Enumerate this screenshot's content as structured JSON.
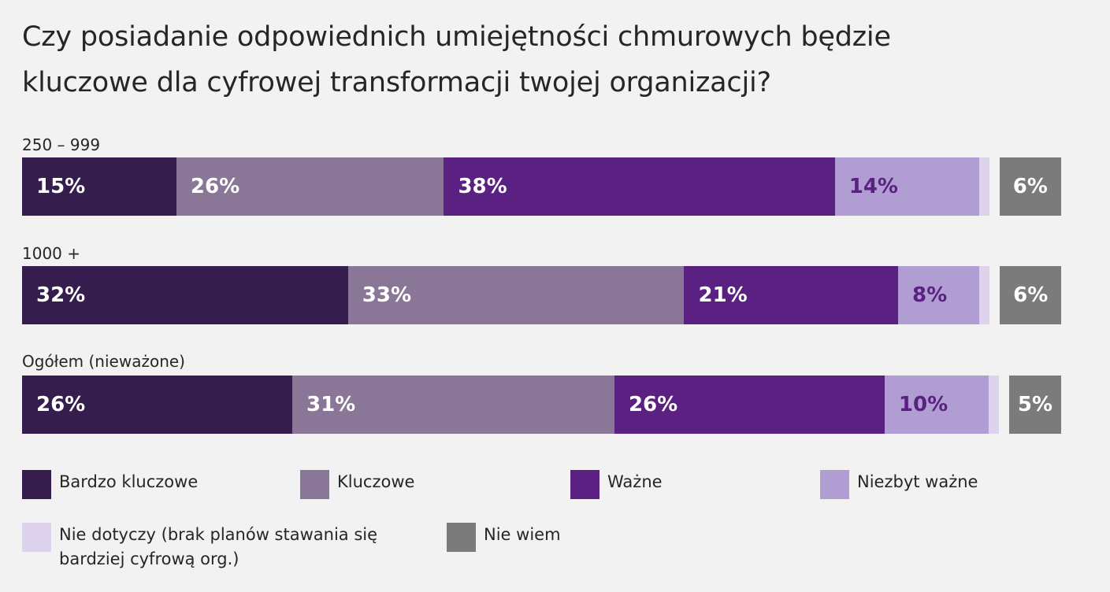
{
  "chart_data": {
    "type": "bar",
    "orientation": "horizontal",
    "stacked": true,
    "title": "Czy posiadanie odpowiednich umiejętności chmurowych będzie kluczowe dla cyfrowej transformacji twojej organizacji?",
    "categories": [
      "250 – 999",
      "1000 +",
      "Ogółem (nieważone)"
    ],
    "series": [
      {
        "name": "Bardzo kluczowe",
        "values": [
          15,
          32,
          26
        ],
        "labels": [
          "15%",
          "32%",
          "26%"
        ],
        "color": "#351d4d",
        "label_color": "#ffffff"
      },
      {
        "name": "Kluczowe",
        "values": [
          26,
          33,
          31
        ],
        "labels": [
          "26%",
          "33%",
          "31%"
        ],
        "color": "#8a7797",
        "label_color": "#ffffff"
      },
      {
        "name": "Ważne",
        "values": [
          38,
          21,
          26
        ],
        "labels": [
          "38%",
          "21%",
          "26%"
        ],
        "color": "#5a2182",
        "label_color": "#ffffff"
      },
      {
        "name": "Niezbyt ważne",
        "values": [
          14,
          8,
          10
        ],
        "labels": [
          "14%",
          "8%",
          "10%"
        ],
        "color": "#b09dd1",
        "label_color": "#5a2182"
      },
      {
        "name": "Nie dotyczy (brak planów stawania się\nbardziej cyfrową org.)",
        "values": [
          1,
          1,
          1
        ],
        "labels": [
          "",
          "",
          ""
        ],
        "color": "#ddd3ec",
        "label_color": "#5a2182"
      },
      {
        "name": "Nie wiem",
        "values": [
          6,
          6,
          5
        ],
        "labels": [
          "6%",
          "6%",
          "5%"
        ],
        "color": "#7b7b7b",
        "label_color": "#ffffff"
      }
    ],
    "legend_position": "bottom",
    "grid": false
  }
}
